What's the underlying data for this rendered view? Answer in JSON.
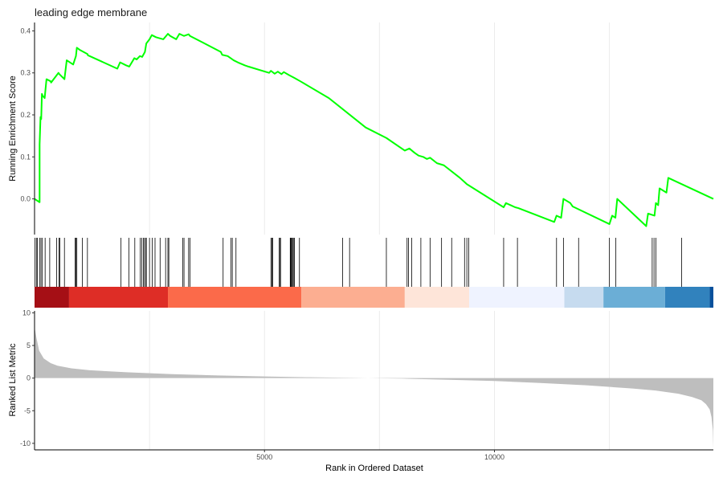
{
  "chart_data": {
    "type": "line",
    "title": "leading edge membrane",
    "xlabel": "Rank in Ordered Dataset",
    "xlim": [
      0,
      14760
    ],
    "x_ticks": [
      5000,
      10000
    ],
    "x_tick_labels": [
      "5000",
      "10000"
    ],
    "grid": true,
    "panels": {
      "enrichment": {
        "ylabel": "Running Enrichment Score",
        "ylim": [
          -0.085,
          0.42
        ],
        "y_ticks": [
          0.0,
          0.1,
          0.2,
          0.3,
          0.4
        ],
        "y_tick_labels": [
          "0.0",
          "0.1",
          "0.2",
          "0.3",
          "0.4"
        ],
        "color": "#00ff00",
        "series": [
          {
            "x": [
              0,
              110,
              110,
              130,
              145,
              160,
              180,
              220,
              260,
              350,
              360,
              520,
              540,
              650,
              700,
              840,
              900,
              920,
              980,
              1150,
              1160,
              1800,
              1860,
              1990,
              2060,
              2170,
              2220,
              2290,
              2340,
              2400,
              2430,
              2500,
              2550,
              2640,
              2700,
              2800,
              2900,
              2950,
              3080,
              3150,
              3250,
              3350,
              3380,
              4050,
              4080,
              4200,
              4330,
              4420,
              4570,
              4650,
              5100,
              5140,
              5220,
              5290,
              5370,
              5420,
              5530,
              5650,
              5780,
              6400,
              7200,
              7650,
              8050,
              8150,
              8260,
              8350,
              8450,
              8530,
              8600,
              8750,
              8900,
              9250,
              9350,
              9400,
              10200,
              10250,
              10450,
              10520,
              11300,
              11350,
              11450,
              11500,
              11650,
              11700,
              12500,
              12560,
              12630,
              12670,
              13300,
              13340,
              13480,
              13510,
              13560,
              13590,
              13740,
              13780,
              14760
            ],
            "y": [
              0.0,
              -0.008,
              0.13,
              0.195,
              0.19,
              0.25,
              0.245,
              0.24,
              0.285,
              0.28,
              0.277,
              0.3,
              0.297,
              0.285,
              0.33,
              0.32,
              0.34,
              0.36,
              0.355,
              0.345,
              0.342,
              0.31,
              0.325,
              0.318,
              0.315,
              0.335,
              0.332,
              0.34,
              0.338,
              0.35,
              0.37,
              0.38,
              0.39,
              0.385,
              0.383,
              0.38,
              0.393,
              0.388,
              0.38,
              0.393,
              0.388,
              0.392,
              0.388,
              0.35,
              0.343,
              0.34,
              0.33,
              0.325,
              0.318,
              0.315,
              0.3,
              0.305,
              0.298,
              0.303,
              0.297,
              0.302,
              0.295,
              0.288,
              0.28,
              0.24,
              0.17,
              0.145,
              0.115,
              0.12,
              0.11,
              0.103,
              0.1,
              0.095,
              0.098,
              0.085,
              0.08,
              0.05,
              0.04,
              0.035,
              -0.02,
              -0.01,
              -0.02,
              -0.022,
              -0.055,
              -0.04,
              -0.045,
              0.0,
              -0.01,
              -0.018,
              -0.06,
              -0.04,
              -0.045,
              0.0,
              -0.065,
              -0.035,
              -0.04,
              -0.01,
              -0.015,
              0.025,
              0.015,
              0.05,
              0.0
            ]
          }
        ]
      },
      "hits": {
        "positions": [
          10,
          40,
          60,
          110,
          140,
          170,
          230,
          330,
          480,
          530,
          550,
          650,
          880,
          900,
          920,
          1040,
          1150,
          1880,
          2050,
          2180,
          2300,
          2330,
          2370,
          2390,
          2420,
          2430,
          2500,
          2560,
          2620,
          2730,
          2850,
          2900,
          2920,
          3220,
          3250,
          3350,
          3380,
          4100,
          4270,
          4300,
          4380,
          5140,
          5160,
          5180,
          5320,
          5330,
          5350,
          5560,
          5570,
          5580,
          5600,
          5620,
          5640,
          5650,
          5760,
          6700,
          6850,
          7650,
          8100,
          8130,
          8200,
          8400,
          8600,
          8850,
          9070,
          9350,
          9400,
          9440,
          10200,
          10500,
          11350,
          11500,
          11830,
          12500,
          12640,
          13430,
          13470,
          13510,
          14070
        ]
      },
      "heatmap_bands": {
        "ranges": [
          [
            0,
            750
          ],
          [
            750,
            2900
          ],
          [
            2900,
            5800
          ],
          [
            5800,
            8050
          ],
          [
            8050,
            9450
          ],
          [
            9450,
            11520
          ],
          [
            11520,
            12370
          ],
          [
            12370,
            13710
          ],
          [
            13710,
            14680
          ],
          [
            14680,
            14760
          ]
        ],
        "colors": [
          "#a50f15",
          "#de2d26",
          "#fb6a4a",
          "#fcae91",
          "#fee5d9",
          "#eff3ff",
          "#c6dbef",
          "#6baed6",
          "#3182bd",
          "#08519c"
        ]
      },
      "ranked": {
        "ylabel": "Ranked List Metric",
        "ylim": [
          -11,
          10.3
        ],
        "y_ticks": [
          10,
          5,
          0,
          -5,
          -10
        ],
        "y_tick_labels": [
          "10",
          "5",
          "0",
          "-5",
          "-10"
        ],
        "fill_color": "#bebebe",
        "x": [
          0,
          40,
          100,
          200,
          350,
          500,
          800,
          1200,
          2000,
          3000,
          4000,
          5000,
          6000,
          7000,
          7500,
          8000,
          9000,
          10000,
          11000,
          12000,
          13000,
          13500,
          14000,
          14300,
          14500,
          14600,
          14680,
          14720,
          14750,
          14760
        ],
        "y": [
          7.8,
          6.2,
          4.2,
          3.0,
          2.3,
          1.9,
          1.5,
          1.2,
          0.9,
          0.6,
          0.4,
          0.25,
          0.12,
          0.03,
          -0.02,
          -0.08,
          -0.25,
          -0.45,
          -0.75,
          -1.1,
          -1.6,
          -1.9,
          -2.4,
          -2.9,
          -3.4,
          -4.0,
          -4.8,
          -6.0,
          -8.0,
          -10.8
        ]
      }
    }
  }
}
